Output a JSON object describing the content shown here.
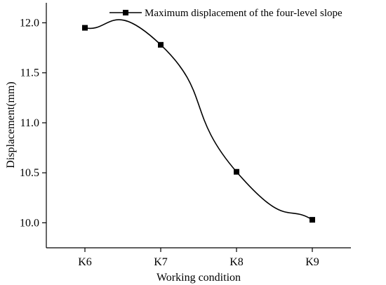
{
  "chart_data": {
    "type": "line",
    "categories": [
      "K6",
      "K7",
      "K8",
      "K9"
    ],
    "series": [
      {
        "name": "Maximum displacement of the four-level slope",
        "values": [
          11.95,
          11.78,
          10.51,
          10.03
        ]
      }
    ],
    "xlabel": "Working condition",
    "ylabel": "Displacement(mm)",
    "ylim": [
      9.75,
      12.2
    ],
    "yticks": [
      "10.0",
      "10.5",
      "11.0",
      "11.5",
      "12.0"
    ],
    "yticks_values": [
      10.0,
      10.5,
      11.0,
      11.5,
      12.0
    ],
    "grid": false,
    "legend": "top-right",
    "smooth": true,
    "marker": "square"
  }
}
